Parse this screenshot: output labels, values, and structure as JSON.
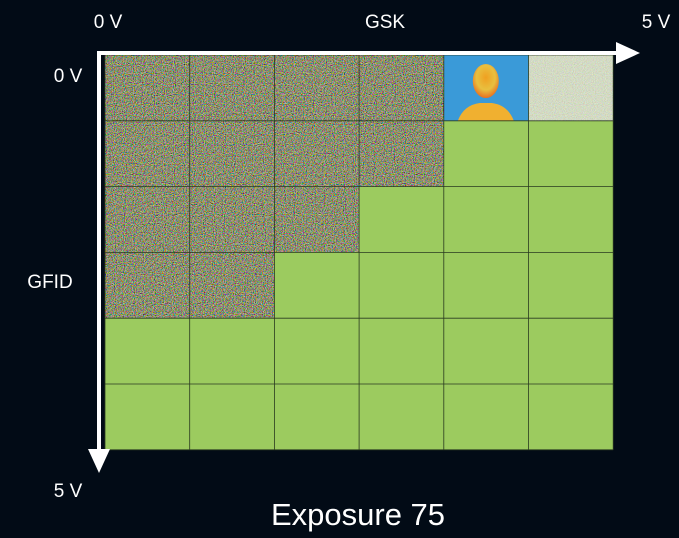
{
  "axes": {
    "x_start": "0 V",
    "x_title": "GSK",
    "x_end": "5 V",
    "y_start": "0 V",
    "y_title": "GFID",
    "y_end": "5 V"
  },
  "caption": "Exposure 75"
}
